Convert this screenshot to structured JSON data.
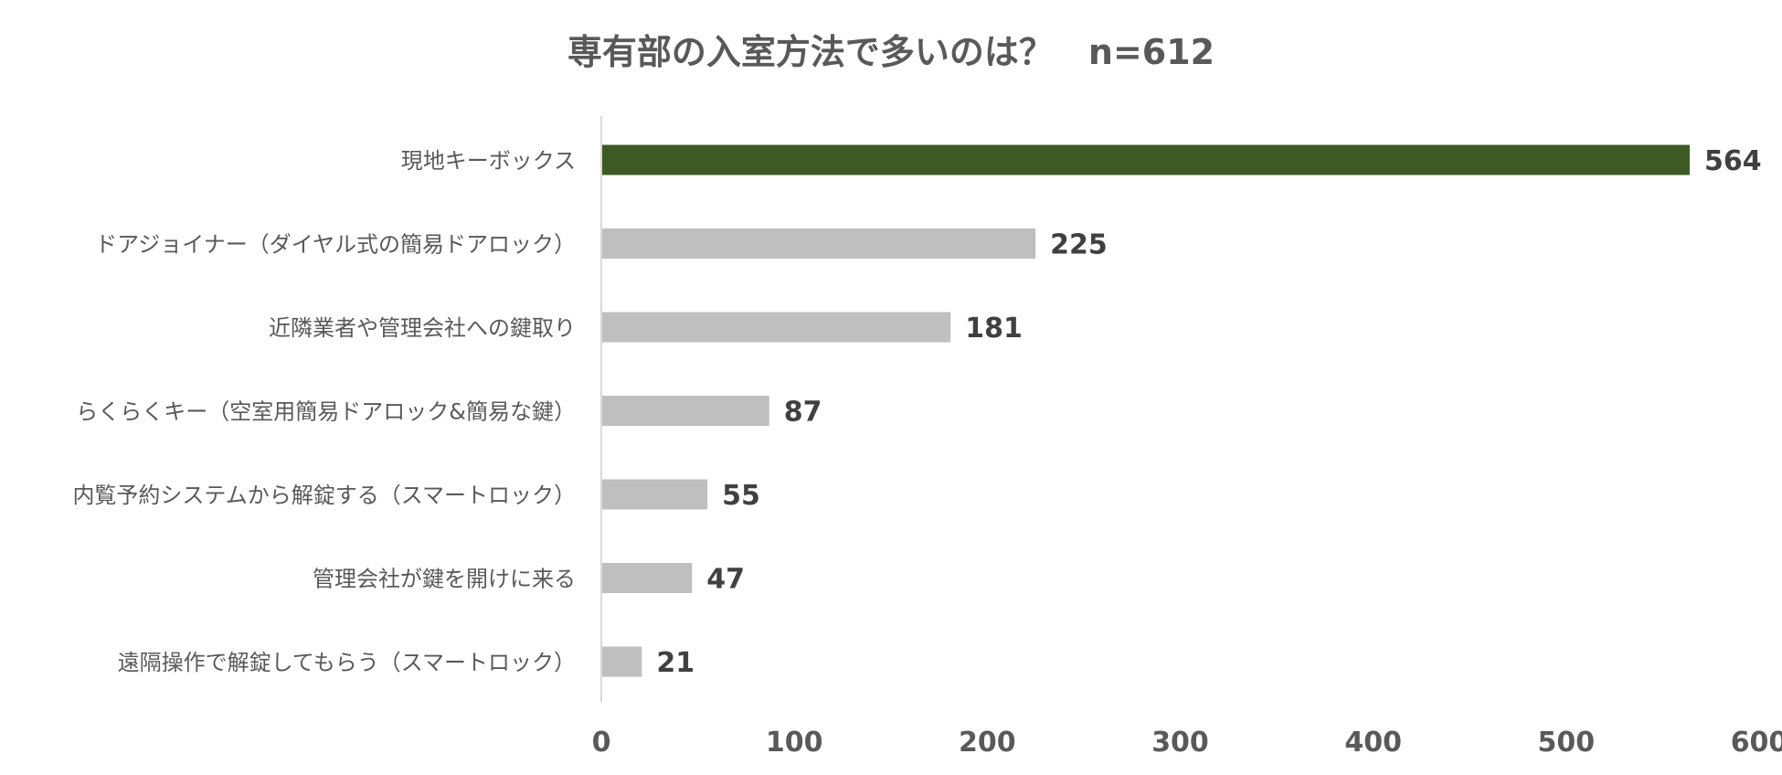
{
  "chart_data": {
    "type": "bar",
    "orientation": "horizontal",
    "title": "専有部の入室方法で多いのは？　n=612",
    "categories": [
      "現地キーボックス",
      "ドアジョイナー（ダイヤル式の簡易ドアロック）",
      "近隣業者や管理会社への鍵取り",
      "らくらくキー（空室用簡易ドアロック&簡易な鍵）",
      "内覧予約システムから解錠する（スマートロック）",
      "管理会社が鍵を開けに来る",
      "遠隔操作で解錠してもらう（スマートロック）"
    ],
    "values": [
      564,
      225,
      181,
      87,
      55,
      47,
      21
    ],
    "value_labels": [
      "564",
      "225",
      "181",
      "87",
      "55",
      "47",
      "21"
    ],
    "xlim": [
      0,
      600
    ],
    "xticks": [
      "0",
      "100",
      "200",
      "300",
      "400",
      "500",
      "600"
    ],
    "bar_colors": [
      "#3d5a25",
      "#bfbfbf",
      "#bfbfbf",
      "#bfbfbf",
      "#bfbfbf",
      "#bfbfbf",
      "#bfbfbf"
    ],
    "axis_color": "#d9d9d9",
    "grid": false,
    "legend": "none"
  }
}
